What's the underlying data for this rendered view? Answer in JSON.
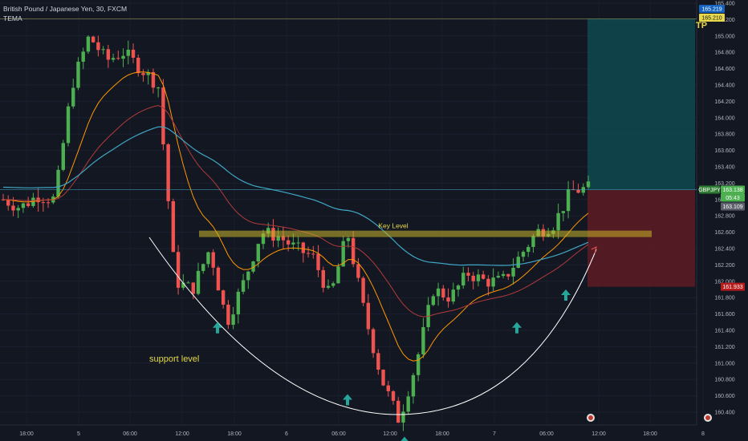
{
  "header": {
    "symbol_line": "British Pound / Japanese Yen, 30, FXCM",
    "indicator": "TEMA"
  },
  "colors": {
    "background": "#131722",
    "up": "#26a69a",
    "up_bright": "#4caf50",
    "down": "#ef5350",
    "ema_fast": "#ff9800",
    "ema_mid": "#b33a3a",
    "ema_slow": "#3fa7c4",
    "key_level": "#c9b52a",
    "tp_zone": "#0e4a4f",
    "sl_zone": "#5a1c24",
    "arrow": "#26a69a",
    "curve": "#ffffff"
  },
  "annotations": {
    "key_level": "Key Level",
    "support_level": "support level",
    "tp": "TP"
  },
  "price_tags": {
    "top_1": "165.219",
    "top_2": "165.210",
    "symbol": "GBPJPY",
    "current": "163.138",
    "countdown": "05:43",
    "second": "163.109",
    "stop": "161.933"
  },
  "chart_data": {
    "type": "candlestick",
    "title": "British Pound / Japanese Yen, 30, FXCM",
    "ylim": [
      160.3,
      165.4
    ],
    "y_ticks": [
      "165.400",
      "165.200",
      "165.000",
      "164.800",
      "164.600",
      "164.400",
      "164.200",
      "164.000",
      "163.800",
      "163.600",
      "163.400",
      "163.200",
      "163.000",
      "162.800",
      "162.600",
      "162.400",
      "162.200",
      "162.000",
      "161.800",
      "161.600",
      "161.400",
      "161.200",
      "161.000",
      "160.800",
      "160.600",
      "160.400"
    ],
    "x_ticks": [
      "18:00",
      "5",
      "06:00",
      "12:00",
      "18:00",
      "6",
      "06:00",
      "12:00",
      "18:00",
      "7",
      "06:00",
      "12:00",
      "18:00",
      "8"
    ],
    "key_level": 162.58,
    "tp_level": 165.21,
    "entry_level": 163.12,
    "stop_level": 161.933,
    "arrows_at_low": [
      161.5,
      160.62,
      160.1,
      161.5,
      161.9
    ],
    "candles_close_path": [
      163.0,
      162.9,
      163.05,
      163.0,
      164.4,
      165.0,
      164.7,
      164.8,
      164.6,
      164.4,
      162.0,
      161.9,
      162.4,
      161.5,
      162.0,
      162.6,
      162.55,
      162.4,
      162.3,
      161.8,
      162.6,
      161.6,
      160.8,
      160.3,
      161.0,
      161.9,
      161.8,
      162.1,
      162.0,
      162.0,
      162.3,
      162.6,
      162.7,
      163.1,
      163.14
    ]
  }
}
